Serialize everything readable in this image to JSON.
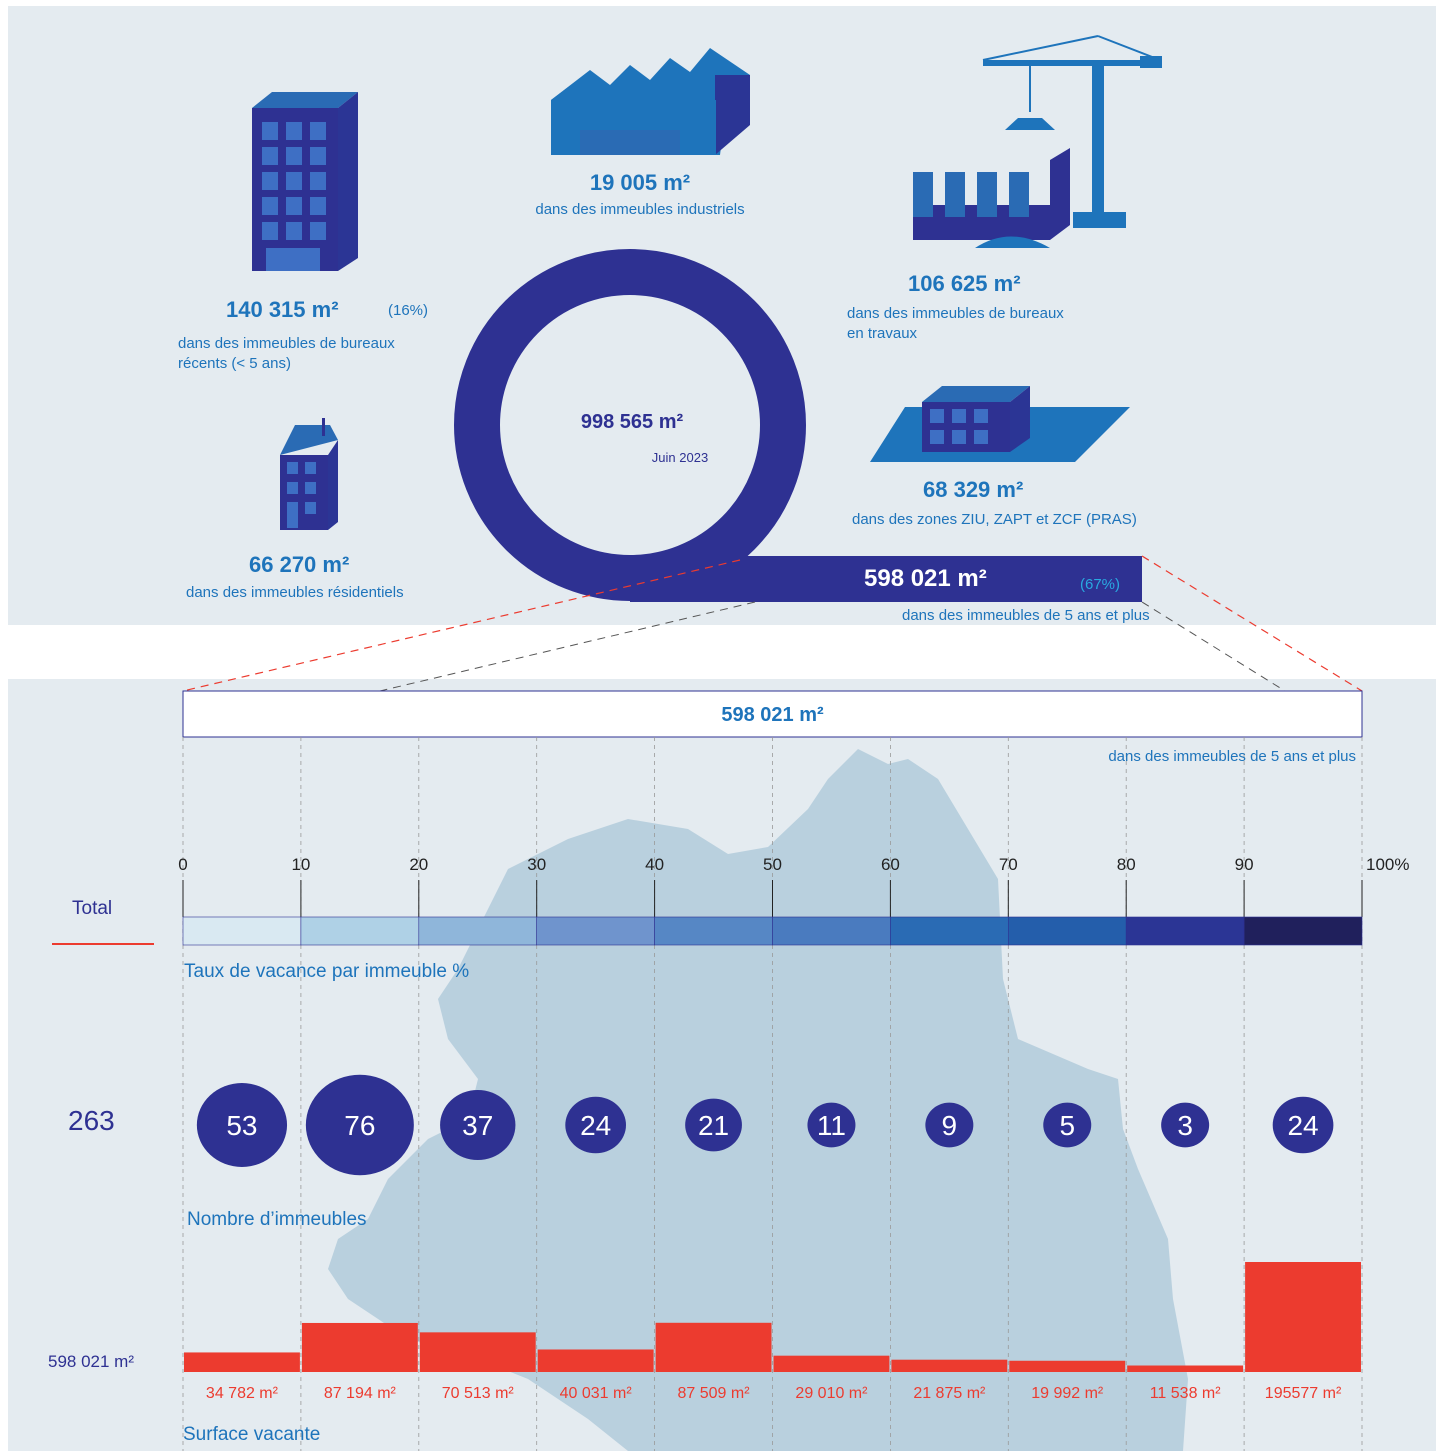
{
  "top": {
    "total": {
      "value": "998 565 m²",
      "date": "Juin 2023"
    },
    "categories": [
      {
        "value": "19 005 m²",
        "caption": "dans des immeubles industriels",
        "icon": "factory-icon"
      },
      {
        "value": "140 315 m²",
        "pct": "(16%)",
        "caption1": "dans des immeubles de bureaux",
        "caption2": "récents (< 5 ans)",
        "icon": "office-tower-icon"
      },
      {
        "value": "106 625 m²",
        "caption1": "dans des immeubles de bureaux",
        "caption2": "en travaux",
        "icon": "construction-crane-icon"
      },
      {
        "value": "66 270 m²",
        "caption": "dans des immeubles résidentiels",
        "icon": "residential-building-icon"
      },
      {
        "value": "68 329 m²",
        "caption": "dans des zones  ZIU, ZAPT et ZCF (PRAS)",
        "icon": "zone-building-icon"
      },
      {
        "value": "598 021 m²",
        "pct": "(67%)",
        "caption": "dans des immeubles de 5 ans et plus"
      }
    ]
  },
  "bottom": {
    "header_value": "598 021 m²",
    "header_caption": "dans des immeubles de 5 ans et plus",
    "row_labels": {
      "total": "Total",
      "count_total": "263",
      "area_total": "598 021 m²"
    },
    "scale_title": "Taux de vacance par immeuble %",
    "count_title": "Nombre d’immeubles",
    "area_title": "Surface vacante"
  },
  "colors": {
    "navy": "#2e3192",
    "blue": "#1e74bb",
    "red": "#ec3b2f",
    "bins": [
      "#d9e9f2",
      "#afd1e6",
      "#8fb6da",
      "#6f94cd",
      "#5687c5",
      "#4a7bbf",
      "#2a6bb4",
      "#245eab",
      "#2b3595",
      "#20205c"
    ]
  },
  "chart_data": {
    "type": "bar",
    "title": "Taux de vacance par immeuble %",
    "x_ticks": [
      "0",
      "10",
      "20",
      "30",
      "40",
      "50",
      "60",
      "70",
      "80",
      "90",
      "100%"
    ],
    "categories": [
      "0-10",
      "10-20",
      "20-30",
      "30-40",
      "40-50",
      "50-60",
      "60-70",
      "70-80",
      "80-90",
      "90-100"
    ],
    "series": [
      {
        "name": "Nombre d’immeubles",
        "values": [
          53,
          76,
          37,
          24,
          21,
          11,
          9,
          5,
          3,
          24
        ]
      },
      {
        "name": "Surface vacante",
        "values": [
          34782,
          87194,
          70513,
          40031,
          87509,
          29010,
          21875,
          19992,
          11538,
          195577
        ]
      }
    ],
    "area_labels": [
      "34 782 m²",
      "87 194 m²",
      "70 513 m²",
      "40 031 m²",
      "87 509 m²",
      "29 010 m²",
      "21 875 m²",
      "19 992 m²",
      "11 538 m²",
      "195577 m²"
    ],
    "totals": {
      "buildings": 263,
      "surface": "598 021 m²"
    }
  }
}
